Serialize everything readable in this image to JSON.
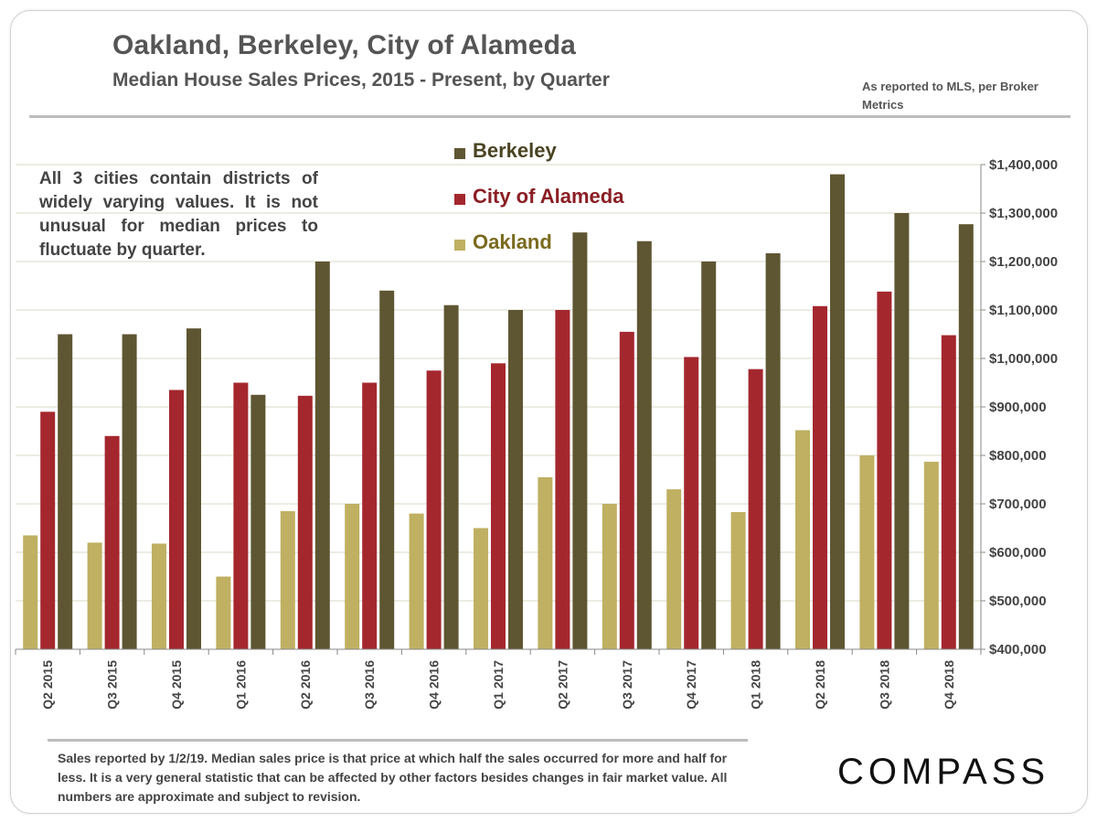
{
  "header": {
    "title": "Oakland, Berkeley, City of Alameda",
    "subtitle": "Median House Sales Prices, 2015 - Present, by Quarter",
    "source_note": "As reported  to MLS, per Broker Metrics"
  },
  "annotation": "All 3 cities contain districts of widely varying values. It is not unusual for median prices to fluctuate by quarter.",
  "footer": {
    "footnote": "Sales reported by 1/2/19. Median sales price is that price at which half the sales occurred for more and half for less. It is a very general statistic that can be affected by other factors besides changes in fair market value. All numbers are approximate and subject to revision.",
    "brand": "COMPASS"
  },
  "legend": [
    {
      "label": "Berkeley",
      "color": "#5e5632",
      "text_color": "#4a4423"
    },
    {
      "label": "City of Alameda",
      "color": "#a4272e",
      "text_color": "#8a1e24"
    },
    {
      "label": "Oakland",
      "color": "#bfb062",
      "text_color": "#7a6a1e"
    }
  ],
  "chart_data": {
    "type": "bar",
    "categories": [
      "Q2 2015",
      "Q3 2015",
      "Q4 2015",
      "Q1 2016",
      "Q2 2016",
      "Q3 2016",
      "Q4 2016",
      "Q1 2017",
      "Q2 2017",
      "Q3 2017",
      "Q4 2017",
      "Q1 2018",
      "Q2 2018",
      "Q3 2018",
      "Q4 2018"
    ],
    "series": [
      {
        "name": "Oakland",
        "color": "#bfb062",
        "values": [
          635000,
          620000,
          618000,
          550000,
          685000,
          700000,
          680000,
          650000,
          755000,
          700000,
          730000,
          683000,
          852000,
          800000,
          787000
        ]
      },
      {
        "name": "City of Alameda",
        "color": "#a4272e",
        "values": [
          890000,
          840000,
          935000,
          950000,
          923000,
          950000,
          975000,
          990000,
          1100000,
          1055000,
          1003000,
          978000,
          1108000,
          1138000,
          1048000
        ]
      },
      {
        "name": "Berkeley",
        "color": "#5e5632",
        "values": [
          1050000,
          1050000,
          1062000,
          925000,
          1200000,
          1140000,
          1110000,
          1100000,
          1260000,
          1242000,
          1200000,
          1217000,
          1380000,
          1300000,
          1277000
        ]
      }
    ],
    "ylim": [
      400000,
      1400000
    ],
    "yticks": [
      400000,
      500000,
      600000,
      700000,
      800000,
      900000,
      1000000,
      1100000,
      1200000,
      1300000,
      1400000
    ],
    "ytick_labels": [
      "$400,000",
      "$500,000",
      "$600,000",
      "$700,000",
      "$800,000",
      "$900,000",
      "$1,000,000",
      "$1,100,000",
      "$1,200,000",
      "$1,300,000",
      "$1,400,000"
    ],
    "y_axis_side": "right",
    "grid": true,
    "legend_position": "top-center"
  }
}
